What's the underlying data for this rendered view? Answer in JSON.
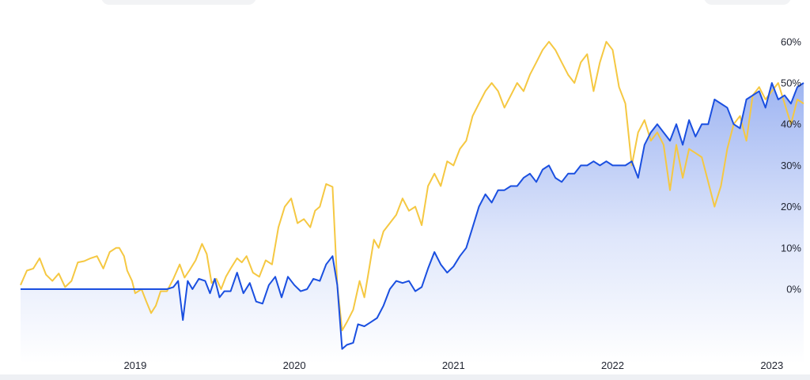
{
  "chart_data": {
    "type": "line",
    "x_axis": {
      "type": "time",
      "min": 2018.28,
      "max": 2023.2,
      "tick_labels": [
        "2019",
        "2020",
        "2021",
        "2022",
        "2023"
      ],
      "ticks": [
        2019,
        2020,
        2021,
        2022,
        2023
      ]
    },
    "y_axis": {
      "min": -0.15,
      "max": 0.62,
      "ticks": [
        0,
        0.1,
        0.2,
        0.3,
        0.4,
        0.5,
        0.6
      ],
      "tick_labels": [
        "0%",
        "10%",
        "20%",
        "30%",
        "40%",
        "50%",
        "60%"
      ],
      "position": "right"
    },
    "grid": false,
    "legend": "none",
    "series": [
      {
        "color": "#f5c842",
        "style": "line",
        "points": [
          [
            2018.28,
            0.01
          ],
          [
            2018.32,
            0.045
          ],
          [
            2018.36,
            0.05
          ],
          [
            2018.4,
            0.075
          ],
          [
            2018.44,
            0.035
          ],
          [
            2018.48,
            0.02
          ],
          [
            2018.52,
            0.038
          ],
          [
            2018.56,
            0.005
          ],
          [
            2018.6,
            0.02
          ],
          [
            2018.64,
            0.065
          ],
          [
            2018.68,
            0.068
          ],
          [
            2018.72,
            0.075
          ],
          [
            2018.76,
            0.08
          ],
          [
            2018.8,
            0.05
          ],
          [
            2018.84,
            0.09
          ],
          [
            2018.88,
            0.1
          ],
          [
            2018.9,
            0.1
          ],
          [
            2018.93,
            0.08
          ],
          [
            2018.95,
            0.045
          ],
          [
            2018.98,
            0.02
          ],
          [
            2019.0,
            -0.01
          ],
          [
            2019.04,
            0.0
          ],
          [
            2019.07,
            -0.03
          ],
          [
            2019.1,
            -0.058
          ],
          [
            2019.13,
            -0.04
          ],
          [
            2019.16,
            -0.005
          ],
          [
            2019.2,
            -0.005
          ],
          [
            2019.24,
            0.025
          ],
          [
            2019.28,
            0.06
          ],
          [
            2019.31,
            0.028
          ],
          [
            2019.34,
            0.045
          ],
          [
            2019.38,
            0.07
          ],
          [
            2019.42,
            0.11
          ],
          [
            2019.45,
            0.085
          ],
          [
            2019.48,
            0.015
          ],
          [
            2019.51,
            0.025
          ],
          [
            2019.54,
            0.0
          ],
          [
            2019.57,
            0.03
          ],
          [
            2019.6,
            0.05
          ],
          [
            2019.64,
            0.075
          ],
          [
            2019.67,
            0.065
          ],
          [
            2019.7,
            0.08
          ],
          [
            2019.74,
            0.04
          ],
          [
            2019.78,
            0.03
          ],
          [
            2019.82,
            0.07
          ],
          [
            2019.86,
            0.06
          ],
          [
            2019.9,
            0.15
          ],
          [
            2019.94,
            0.2
          ],
          [
            2019.98,
            0.22
          ],
          [
            2020.02,
            0.16
          ],
          [
            2020.06,
            0.17
          ],
          [
            2020.1,
            0.15
          ],
          [
            2020.13,
            0.19
          ],
          [
            2020.16,
            0.2
          ],
          [
            2020.2,
            0.255
          ],
          [
            2020.24,
            0.248
          ],
          [
            2020.27,
            0.01
          ],
          [
            2020.3,
            -0.1
          ],
          [
            2020.33,
            -0.08
          ],
          [
            2020.37,
            -0.05
          ],
          [
            2020.41,
            0.02
          ],
          [
            2020.44,
            -0.02
          ],
          [
            2020.47,
            0.05
          ],
          [
            2020.5,
            0.12
          ],
          [
            2020.53,
            0.1
          ],
          [
            2020.56,
            0.14
          ],
          [
            2020.6,
            0.16
          ],
          [
            2020.64,
            0.18
          ],
          [
            2020.68,
            0.22
          ],
          [
            2020.72,
            0.19
          ],
          [
            2020.76,
            0.2
          ],
          [
            2020.8,
            0.155
          ],
          [
            2020.84,
            0.25
          ],
          [
            2020.88,
            0.28
          ],
          [
            2020.92,
            0.25
          ],
          [
            2020.96,
            0.31
          ],
          [
            2021.0,
            0.3
          ],
          [
            2021.04,
            0.34
          ],
          [
            2021.08,
            0.36
          ],
          [
            2021.12,
            0.42
          ],
          [
            2021.16,
            0.45
          ],
          [
            2021.2,
            0.48
          ],
          [
            2021.24,
            0.5
          ],
          [
            2021.28,
            0.48
          ],
          [
            2021.32,
            0.44
          ],
          [
            2021.36,
            0.47
          ],
          [
            2021.4,
            0.5
          ],
          [
            2021.44,
            0.48
          ],
          [
            2021.48,
            0.52
          ],
          [
            2021.52,
            0.55
          ],
          [
            2021.56,
            0.58
          ],
          [
            2021.6,
            0.6
          ],
          [
            2021.64,
            0.58
          ],
          [
            2021.68,
            0.55
          ],
          [
            2021.72,
            0.52
          ],
          [
            2021.76,
            0.5
          ],
          [
            2021.8,
            0.55
          ],
          [
            2021.84,
            0.57
          ],
          [
            2021.88,
            0.48
          ],
          [
            2021.92,
            0.55
          ],
          [
            2021.96,
            0.6
          ],
          [
            2022.0,
            0.58
          ],
          [
            2022.04,
            0.49
          ],
          [
            2022.08,
            0.45
          ],
          [
            2022.12,
            0.3
          ],
          [
            2022.16,
            0.38
          ],
          [
            2022.2,
            0.41
          ],
          [
            2022.24,
            0.36
          ],
          [
            2022.28,
            0.38
          ],
          [
            2022.32,
            0.35
          ],
          [
            2022.36,
            0.24
          ],
          [
            2022.4,
            0.35
          ],
          [
            2022.44,
            0.27
          ],
          [
            2022.48,
            0.34
          ],
          [
            2022.52,
            0.33
          ],
          [
            2022.56,
            0.32
          ],
          [
            2022.6,
            0.26
          ],
          [
            2022.64,
            0.2
          ],
          [
            2022.68,
            0.25
          ],
          [
            2022.72,
            0.34
          ],
          [
            2022.76,
            0.4
          ],
          [
            2022.8,
            0.42
          ],
          [
            2022.84,
            0.36
          ],
          [
            2022.88,
            0.47
          ],
          [
            2022.92,
            0.49
          ],
          [
            2022.96,
            0.46
          ],
          [
            2023.0,
            0.48
          ],
          [
            2023.04,
            0.5
          ],
          [
            2023.08,
            0.45
          ],
          [
            2023.12,
            0.4
          ],
          [
            2023.16,
            0.46
          ],
          [
            2023.2,
            0.45
          ]
        ]
      },
      {
        "color": "#1a4fe0",
        "style": "area",
        "points": [
          [
            2018.28,
            0.0
          ],
          [
            2019.2,
            0.0
          ],
          [
            2019.24,
            0.005
          ],
          [
            2019.27,
            0.02
          ],
          [
            2019.3,
            -0.075
          ],
          [
            2019.33,
            0.02
          ],
          [
            2019.36,
            0.0
          ],
          [
            2019.4,
            0.025
          ],
          [
            2019.44,
            0.02
          ],
          [
            2019.47,
            -0.01
          ],
          [
            2019.5,
            0.025
          ],
          [
            2019.53,
            -0.02
          ],
          [
            2019.56,
            -0.005
          ],
          [
            2019.6,
            -0.005
          ],
          [
            2019.64,
            0.04
          ],
          [
            2019.68,
            -0.01
          ],
          [
            2019.72,
            0.015
          ],
          [
            2019.76,
            -0.03
          ],
          [
            2019.8,
            -0.035
          ],
          [
            2019.84,
            0.01
          ],
          [
            2019.88,
            0.03
          ],
          [
            2019.92,
            -0.02
          ],
          [
            2019.96,
            0.03
          ],
          [
            2020.0,
            0.01
          ],
          [
            2020.04,
            -0.005
          ],
          [
            2020.08,
            0.0
          ],
          [
            2020.12,
            0.025
          ],
          [
            2020.16,
            0.02
          ],
          [
            2020.2,
            0.06
          ],
          [
            2020.24,
            0.08
          ],
          [
            2020.27,
            0.01
          ],
          [
            2020.3,
            -0.145
          ],
          [
            2020.33,
            -0.135
          ],
          [
            2020.37,
            -0.13
          ],
          [
            2020.4,
            -0.085
          ],
          [
            2020.44,
            -0.09
          ],
          [
            2020.48,
            -0.08
          ],
          [
            2020.52,
            -0.07
          ],
          [
            2020.56,
            -0.04
          ],
          [
            2020.6,
            0.0
          ],
          [
            2020.64,
            0.02
          ],
          [
            2020.68,
            0.015
          ],
          [
            2020.72,
            0.02
          ],
          [
            2020.76,
            -0.005
          ],
          [
            2020.8,
            0.005
          ],
          [
            2020.84,
            0.05
          ],
          [
            2020.88,
            0.09
          ],
          [
            2020.92,
            0.06
          ],
          [
            2020.96,
            0.04
          ],
          [
            2021.0,
            0.055
          ],
          [
            2021.04,
            0.08
          ],
          [
            2021.08,
            0.1
          ],
          [
            2021.12,
            0.15
          ],
          [
            2021.16,
            0.2
          ],
          [
            2021.2,
            0.23
          ],
          [
            2021.24,
            0.21
          ],
          [
            2021.28,
            0.24
          ],
          [
            2021.32,
            0.24
          ],
          [
            2021.36,
            0.25
          ],
          [
            2021.4,
            0.25
          ],
          [
            2021.44,
            0.27
          ],
          [
            2021.48,
            0.28
          ],
          [
            2021.52,
            0.26
          ],
          [
            2021.56,
            0.29
          ],
          [
            2021.6,
            0.3
          ],
          [
            2021.64,
            0.27
          ],
          [
            2021.68,
            0.26
          ],
          [
            2021.72,
            0.28
          ],
          [
            2021.76,
            0.28
          ],
          [
            2021.8,
            0.3
          ],
          [
            2021.84,
            0.3
          ],
          [
            2021.88,
            0.31
          ],
          [
            2021.92,
            0.3
          ],
          [
            2021.96,
            0.31
          ],
          [
            2022.0,
            0.3
          ],
          [
            2022.04,
            0.3
          ],
          [
            2022.08,
            0.3
          ],
          [
            2022.12,
            0.31
          ],
          [
            2022.16,
            0.27
          ],
          [
            2022.2,
            0.35
          ],
          [
            2022.24,
            0.38
          ],
          [
            2022.28,
            0.4
          ],
          [
            2022.32,
            0.38
          ],
          [
            2022.36,
            0.36
          ],
          [
            2022.4,
            0.4
          ],
          [
            2022.44,
            0.35
          ],
          [
            2022.48,
            0.41
          ],
          [
            2022.52,
            0.37
          ],
          [
            2022.56,
            0.4
          ],
          [
            2022.6,
            0.4
          ],
          [
            2022.64,
            0.46
          ],
          [
            2022.68,
            0.45
          ],
          [
            2022.72,
            0.44
          ],
          [
            2022.76,
            0.4
          ],
          [
            2022.8,
            0.39
          ],
          [
            2022.84,
            0.46
          ],
          [
            2022.88,
            0.47
          ],
          [
            2022.92,
            0.48
          ],
          [
            2022.96,
            0.44
          ],
          [
            2023.0,
            0.5
          ],
          [
            2023.04,
            0.46
          ],
          [
            2023.08,
            0.47
          ],
          [
            2023.12,
            0.45
          ],
          [
            2023.16,
            0.49
          ],
          [
            2023.2,
            0.5
          ]
        ]
      }
    ]
  }
}
